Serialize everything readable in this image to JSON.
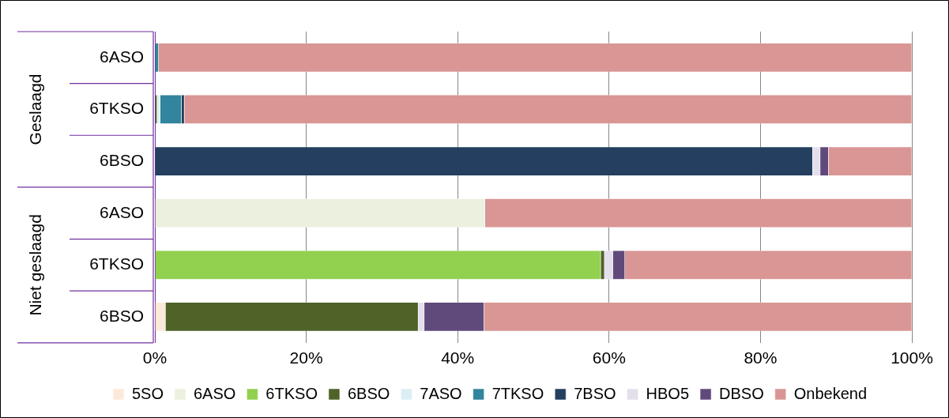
{
  "chart_data": {
    "type": "bar",
    "orientation": "horizontal",
    "stacked": true,
    "categories": [
      "6ASO",
      "6TKSO",
      "6BSO",
      "6ASO",
      "6TKSO",
      "6BSO"
    ],
    "annotations": [
      "Geslaagd",
      "Niet geslaagd"
    ],
    "series": [
      {
        "name": "5SO",
        "color": "#fde9d9",
        "values": [
          0,
          0,
          0,
          0,
          0,
          1.4
        ]
      },
      {
        "name": "6ASO",
        "color": "#ebf1de",
        "values": [
          0,
          0,
          0,
          43.6,
          0,
          0
        ]
      },
      {
        "name": "6TKSO",
        "color": "#92d050",
        "values": [
          0,
          0,
          0,
          0,
          58.9,
          0
        ]
      },
      {
        "name": "6BSO",
        "color": "#4f6228",
        "values": [
          0,
          0.3,
          0,
          0,
          0.5,
          33.4
        ]
      },
      {
        "name": "7ASO",
        "color": "#dbeef4",
        "values": [
          0,
          0.4,
          0,
          0,
          0,
          0
        ]
      },
      {
        "name": "7TKSO",
        "color": "#31859c",
        "values": [
          0.5,
          2.8,
          0,
          0,
          0,
          0
        ]
      },
      {
        "name": "7BSO",
        "color": "#243f60",
        "values": [
          0,
          0.4,
          86.9,
          0,
          0,
          0
        ]
      },
      {
        "name": "HBO5",
        "color": "#e4dfec",
        "values": [
          0,
          null,
          1.0,
          0,
          1.1,
          0.8
        ]
      },
      {
        "name": "DBSO",
        "color": "#604a7b",
        "values": [
          0,
          0,
          1.1,
          0,
          1.6,
          7.9
        ]
      },
      {
        "name": "Onbekend",
        "color": "#d99694",
        "values": [
          99.5,
          96.1,
          11.0,
          56.4,
          37.9,
          56.5
        ]
      }
    ],
    "xlim": [
      0,
      100
    ],
    "xticks": [
      {
        "value": 0,
        "label": "0%"
      },
      {
        "value": 20,
        "label": "20%"
      },
      {
        "value": 40,
        "label": "40%"
      },
      {
        "value": 60,
        "label": "60%"
      },
      {
        "value": 80,
        "label": "80%"
      },
      {
        "value": 100,
        "label": "100%"
      }
    ],
    "grid": "x",
    "legend": "bottom"
  }
}
